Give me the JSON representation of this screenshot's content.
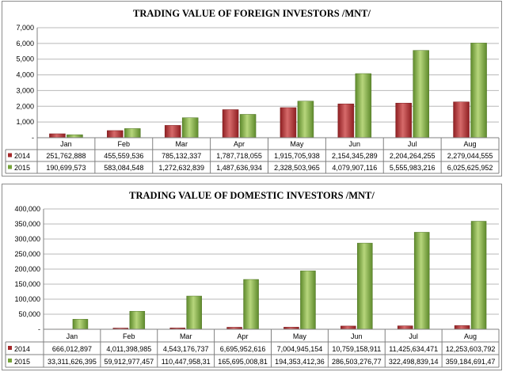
{
  "chart_data": [
    {
      "type": "bar",
      "title": "TRADING VALUE OF FOREIGN INVESTORS /MNT/",
      "categories": [
        "Jan",
        "Feb",
        "Mar",
        "Apr",
        "May",
        "Jun",
        "Jul",
        "Aug"
      ],
      "ylim": [
        0,
        7000
      ],
      "yticks": [
        "-",
        "1,000",
        "2,000",
        "3,000",
        "4,000",
        "5,000",
        "6,000",
        "7,000"
      ],
      "grid": true,
      "legend": "data-table-below",
      "series": [
        {
          "name": "2014",
          "color": "#a5282a",
          "values": [
            251.8,
            455.6,
            785.1,
            1787.7,
            1915.7,
            2154.3,
            2204.3,
            2279.0
          ],
          "labels": [
            "251,762,888",
            "455,559,536",
            "785,132,337",
            "1,787,718,055",
            "1,915,705,938",
            "2,154,345,289",
            "2,204,264,255",
            "2,279,044,555"
          ]
        },
        {
          "name": "2015",
          "color": "#76a33a",
          "values": [
            190.7,
            583.1,
            1272.6,
            1487.6,
            2328.5,
            4079.9,
            5556.0,
            6025.6
          ],
          "labels": [
            "190,699,573",
            "583,084,548",
            "1,272,632,839",
            "1,487,636,934",
            "2,328,503,965",
            "4,079,907,116",
            "5,555,983,216",
            "6,025,625,952"
          ]
        }
      ]
    },
    {
      "type": "bar",
      "title": "TRADING VALUE OF DOMESTIC INVESTORS /MNT/",
      "categories": [
        "Jan",
        "Feb",
        "Mar",
        "Apr",
        "May",
        "Jun",
        "Jul",
        "Aug"
      ],
      "ylim": [
        0,
        400000
      ],
      "yticks": [
        "-",
        "50,000",
        "100,000",
        "150,000",
        "200,000",
        "250,000",
        "300,000",
        "350,000",
        "400,000"
      ],
      "grid": true,
      "legend": "data-table-below",
      "series": [
        {
          "name": "2014",
          "color": "#a5282a",
          "values": [
            666.0,
            4011.4,
            4543.2,
            6696.0,
            7004.9,
            10759.2,
            11425.6,
            12253.6
          ],
          "labels": [
            "666,012,897",
            "4,011,398,985",
            "4,543,176,737",
            "6,695,952,616",
            "7,004,945,154",
            "10,759,158,911",
            "11,425,634,471",
            "12,253,603,792"
          ]
        },
        {
          "name": "2015",
          "color": "#76a33a",
          "values": [
            33311.6,
            59913.0,
            110448.0,
            165695.0,
            194353.4,
            286503.3,
            322498.8,
            359184.7
          ],
          "labels": [
            "33,311,626,395",
            "59,912,977,457",
            "110,447,958,31",
            "165,695,008,81",
            "194,353,412,36",
            "286,503,276,77",
            "322,498,839,14",
            "359,184,691,47"
          ]
        }
      ]
    }
  ]
}
